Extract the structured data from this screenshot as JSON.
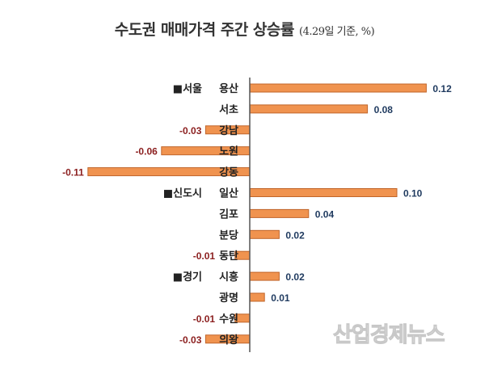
{
  "chart_data": {
    "type": "bar",
    "orientation": "horizontal",
    "title": "수도권 매매가격 주간 상승률",
    "subtitle": "(4.29일 기준, %)",
    "categories": [
      "용산",
      "서초",
      "강남",
      "노원",
      "강동",
      "일산",
      "김포",
      "분당",
      "동탄",
      "시흥",
      "광명",
      "수원",
      "의왕"
    ],
    "groups": [
      {
        "label": "■서울",
        "start": "용산"
      },
      {
        "label": "■신도시",
        "start": "일산"
      },
      {
        "label": "■경기",
        "start": "시흥"
      }
    ],
    "values": [
      0.12,
      0.08,
      -0.03,
      -0.06,
      -0.11,
      0.1,
      0.04,
      0.02,
      -0.01,
      0.02,
      0.01,
      -0.01,
      -0.03
    ],
    "value_labels": [
      "0.12",
      "0.08",
      "-0.03",
      "-0.06",
      "-0.11",
      "0.10",
      "0.04",
      "0.02",
      "-0.01",
      "0.02",
      "0.01",
      "-0.01",
      "-0.03"
    ],
    "xlim": [
      -0.11,
      0.12
    ],
    "grid": false,
    "colors": {
      "bar": "#f0934f",
      "bar_border": "#c0652a",
      "positive_label": "#1f3a5f",
      "negative_label": "#8b1e1e",
      "axis": "#555555"
    }
  },
  "watermark": "산업경제뉴스"
}
